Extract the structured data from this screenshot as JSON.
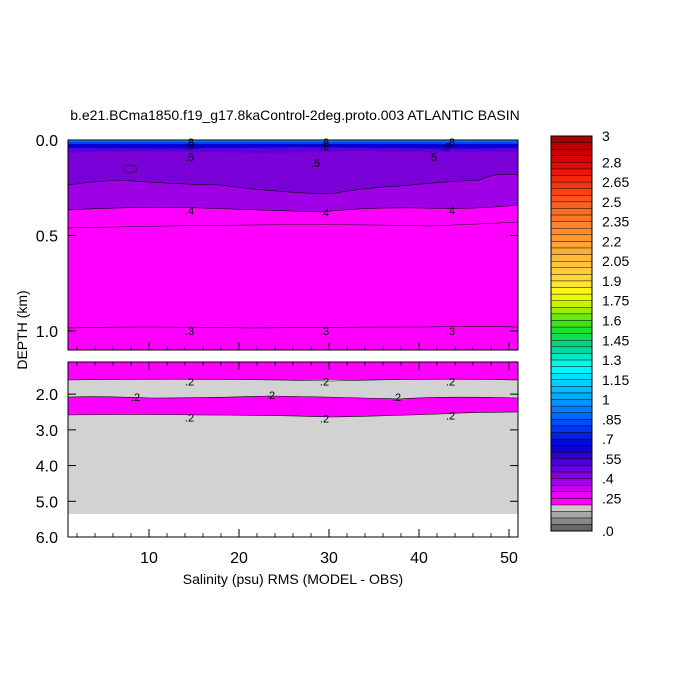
{
  "chart_data": {
    "type": "heatmap",
    "title": "b.e21.BCma1850.f19_g17.8kaControl-2deg.proto.003 ATLANTIC BASIN",
    "xlabel": "Salinity (psu) RMS (MODEL - OBS)",
    "ylabel": "DEPTH (km)",
    "x_range": [
      1,
      51
    ],
    "x_ticks": [
      "10",
      "20",
      "30",
      "40",
      "50"
    ],
    "x_tick_values": [
      10,
      20,
      30,
      40,
      50
    ],
    "upper_panel": {
      "y_range": [
        0.0,
        1.1
      ],
      "y_ticks": [
        "0.0",
        "0.5",
        "1.0"
      ],
      "y_tick_values": [
        0.0,
        0.5,
        1.0
      ]
    },
    "lower_panel": {
      "y_range": [
        1.1,
        6.0
      ],
      "y_ticks": [
        "2.0",
        "3.0",
        "4.0",
        "5.0",
        "6.0"
      ],
      "y_tick_values": [
        2.0,
        3.0,
        4.0,
        5.0,
        6.0
      ]
    },
    "contour_labels": [
      {
        "panel": "upper",
        "x": 14.5,
        "depth": 0.01,
        "text": ".8"
      },
      {
        "panel": "upper",
        "x": 29.5,
        "depth": 0.01,
        "text": ".8"
      },
      {
        "panel": "upper",
        "x": 43.5,
        "depth": 0.01,
        "text": ".8"
      },
      {
        "panel": "upper",
        "x": 14.5,
        "depth": 0.03,
        "text": ".6"
      },
      {
        "panel": "upper",
        "x": 29.5,
        "depth": 0.035,
        "text": ".6"
      },
      {
        "panel": "upper",
        "x": 43.0,
        "depth": 0.035,
        "text": ".6"
      },
      {
        "panel": "upper",
        "x": 14.5,
        "depth": 0.09,
        "text": ".5"
      },
      {
        "panel": "upper",
        "x": 28.5,
        "depth": 0.12,
        "text": ".5"
      },
      {
        "panel": "upper",
        "x": 41.5,
        "depth": 0.09,
        "text": ".5"
      },
      {
        "panel": "upper",
        "x": 14.5,
        "depth": 0.37,
        "text": ".4"
      },
      {
        "panel": "upper",
        "x": 29.5,
        "depth": 0.38,
        "text": ".4"
      },
      {
        "panel": "upper",
        "x": 43.5,
        "depth": 0.37,
        "text": ".4"
      },
      {
        "panel": "upper",
        "x": 14.5,
        "depth": 1.0,
        "text": ".3"
      },
      {
        "panel": "upper",
        "x": 29.5,
        "depth": 1.0,
        "text": ".3"
      },
      {
        "panel": "upper",
        "x": 43.5,
        "depth": 1.0,
        "text": ".3"
      },
      {
        "panel": "lower",
        "x": 14.5,
        "depth": 1.65,
        "text": ".2"
      },
      {
        "panel": "lower",
        "x": 29.5,
        "depth": 1.65,
        "text": ".2"
      },
      {
        "panel": "lower",
        "x": 43.5,
        "depth": 1.65,
        "text": ".2"
      },
      {
        "panel": "lower",
        "x": 8.5,
        "depth": 2.08,
        "text": ".2"
      },
      {
        "panel": "lower",
        "x": 23.5,
        "depth": 2.03,
        "text": ".2"
      },
      {
        "panel": "lower",
        "x": 37.5,
        "depth": 2.08,
        "text": ".2"
      },
      {
        "panel": "lower",
        "x": 14.5,
        "depth": 2.65,
        "text": ".2"
      },
      {
        "panel": "lower",
        "x": 29.5,
        "depth": 2.68,
        "text": ".2"
      },
      {
        "panel": "lower",
        "x": 43.5,
        "depth": 2.6,
        "text": ".2"
      }
    ],
    "colorbar": {
      "labels": [
        {
          "text": "3",
          "value": 3.0
        },
        {
          "text": "2.8",
          "value": 2.8
        },
        {
          "text": "2.65",
          "value": 2.65
        },
        {
          "text": "2.5",
          "value": 2.5
        },
        {
          "text": "2.35",
          "value": 2.35
        },
        {
          "text": "2.2",
          "value": 2.2
        },
        {
          "text": "2.05",
          "value": 2.05
        },
        {
          "text": "1.9",
          "value": 1.9
        },
        {
          "text": "1.75",
          "value": 1.75
        },
        {
          "text": "1.6",
          "value": 1.6
        },
        {
          "text": "1.45",
          "value": 1.45
        },
        {
          "text": "1.3",
          "value": 1.3
        },
        {
          "text": "1.15",
          "value": 1.15
        },
        {
          "text": "1",
          "value": 1.0
        },
        {
          "text": ".85",
          "value": 0.85
        },
        {
          "text": ".7",
          "value": 0.7
        },
        {
          "text": ".55",
          "value": 0.55
        },
        {
          "text": ".4",
          "value": 0.4
        },
        {
          "text": ".25",
          "value": 0.25
        },
        {
          "text": ".0",
          "value": 0.0
        }
      ],
      "stops": [
        {
          "value": 3.0,
          "color": "#a00000"
        },
        {
          "value": 2.8,
          "color": "#e60000"
        },
        {
          "value": 2.5,
          "color": "#ff5a1e"
        },
        {
          "value": 2.2,
          "color": "#ffa032"
        },
        {
          "value": 1.9,
          "color": "#ffdc3c"
        },
        {
          "value": 1.8,
          "color": "#ffff00"
        },
        {
          "value": 1.7,
          "color": "#b4f000"
        },
        {
          "value": 1.55,
          "color": "#1ee61e"
        },
        {
          "value": 1.4,
          "color": "#00d28c"
        },
        {
          "value": 1.25,
          "color": "#00ffff"
        },
        {
          "value": 1.0,
          "color": "#00a0ff"
        },
        {
          "value": 0.8,
          "color": "#0040ff"
        },
        {
          "value": 0.65,
          "color": "#0000d2"
        },
        {
          "value": 0.5,
          "color": "#5a00dc"
        },
        {
          "value": 0.38,
          "color": "#a000e6"
        },
        {
          "value": 0.25,
          "color": "#ff00ff"
        },
        {
          "value": 0.2,
          "color": "#ff00ff"
        }
      ],
      "gray_colors": [
        "#c8c8c8",
        "#a8a8a8",
        "#888888",
        "#686868"
      ]
    },
    "colors": {
      "magenta": "#ff00ff",
      "purple": "#a000e6",
      "violet": "#7a00d8",
      "blue": "#1a1aff",
      "gray_fill": "#d2d2d2"
    }
  }
}
